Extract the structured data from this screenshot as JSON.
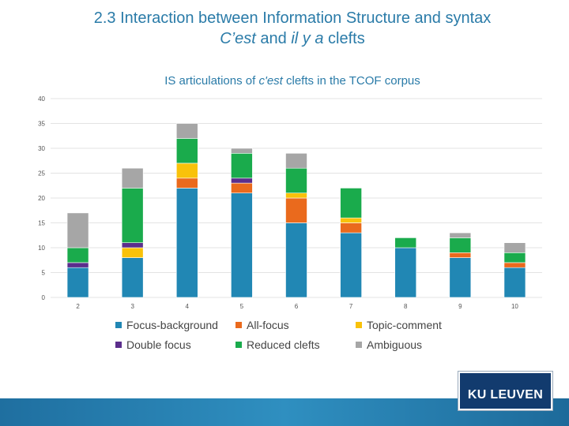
{
  "slide": {
    "title_line1": "2.3 Interaction between Information Structure and syntax",
    "title_line2_a": "C’est",
    "title_line2_b": " and ",
    "title_line2_c": "il y a",
    "title_line2_d": " clefts"
  },
  "logo": {
    "text": "KU LEUVEN"
  },
  "colors": {
    "Focus-background": "#2187b4",
    "All-focus": "#ea6a1d",
    "Topic-comment": "#f9c20a",
    "Double focus": "#5b2e8c",
    "Reduced clefts": "#1aab4c",
    "Ambiguous": "#a6a6a6",
    "title": "#2a7ba8",
    "chart_title": "#2a7ba8",
    "grid": "#e3e3e3"
  },
  "chart_data": {
    "type": "bar",
    "stacked": true,
    "title": "IS articulations of c'est clefts in the TCOF corpus",
    "title_plain_a": "IS articulations of ",
    "title_italic": "c'est",
    "title_plain_b": " clefts in the TCOF corpus",
    "categories": [
      "2",
      "3",
      "4",
      "5",
      "6",
      "7",
      "8",
      "9",
      "10"
    ],
    "ylim": [
      0,
      40
    ],
    "yticks": [
      0,
      5,
      10,
      15,
      20,
      25,
      30,
      35,
      40
    ],
    "grid": true,
    "legend_position": "bottom",
    "series": [
      {
        "name": "Focus-background",
        "values": [
          6,
          8,
          22,
          21,
          15,
          13,
          10,
          8,
          6
        ]
      },
      {
        "name": "All-focus",
        "values": [
          0,
          0,
          2,
          2,
          5,
          2,
          0,
          1,
          1
        ]
      },
      {
        "name": "Topic-comment",
        "values": [
          0,
          2,
          3,
          0,
          1,
          1,
          0,
          0,
          0
        ]
      },
      {
        "name": "Double focus",
        "values": [
          1,
          1,
          0,
          1,
          0,
          0,
          0,
          0,
          0
        ]
      },
      {
        "name": "Reduced clefts",
        "values": [
          3,
          11,
          5,
          5,
          5,
          6,
          2,
          3,
          2
        ]
      },
      {
        "name": "Ambiguous",
        "values": [
          7,
          4,
          3,
          1,
          3,
          0,
          0,
          1,
          2
        ]
      }
    ]
  }
}
